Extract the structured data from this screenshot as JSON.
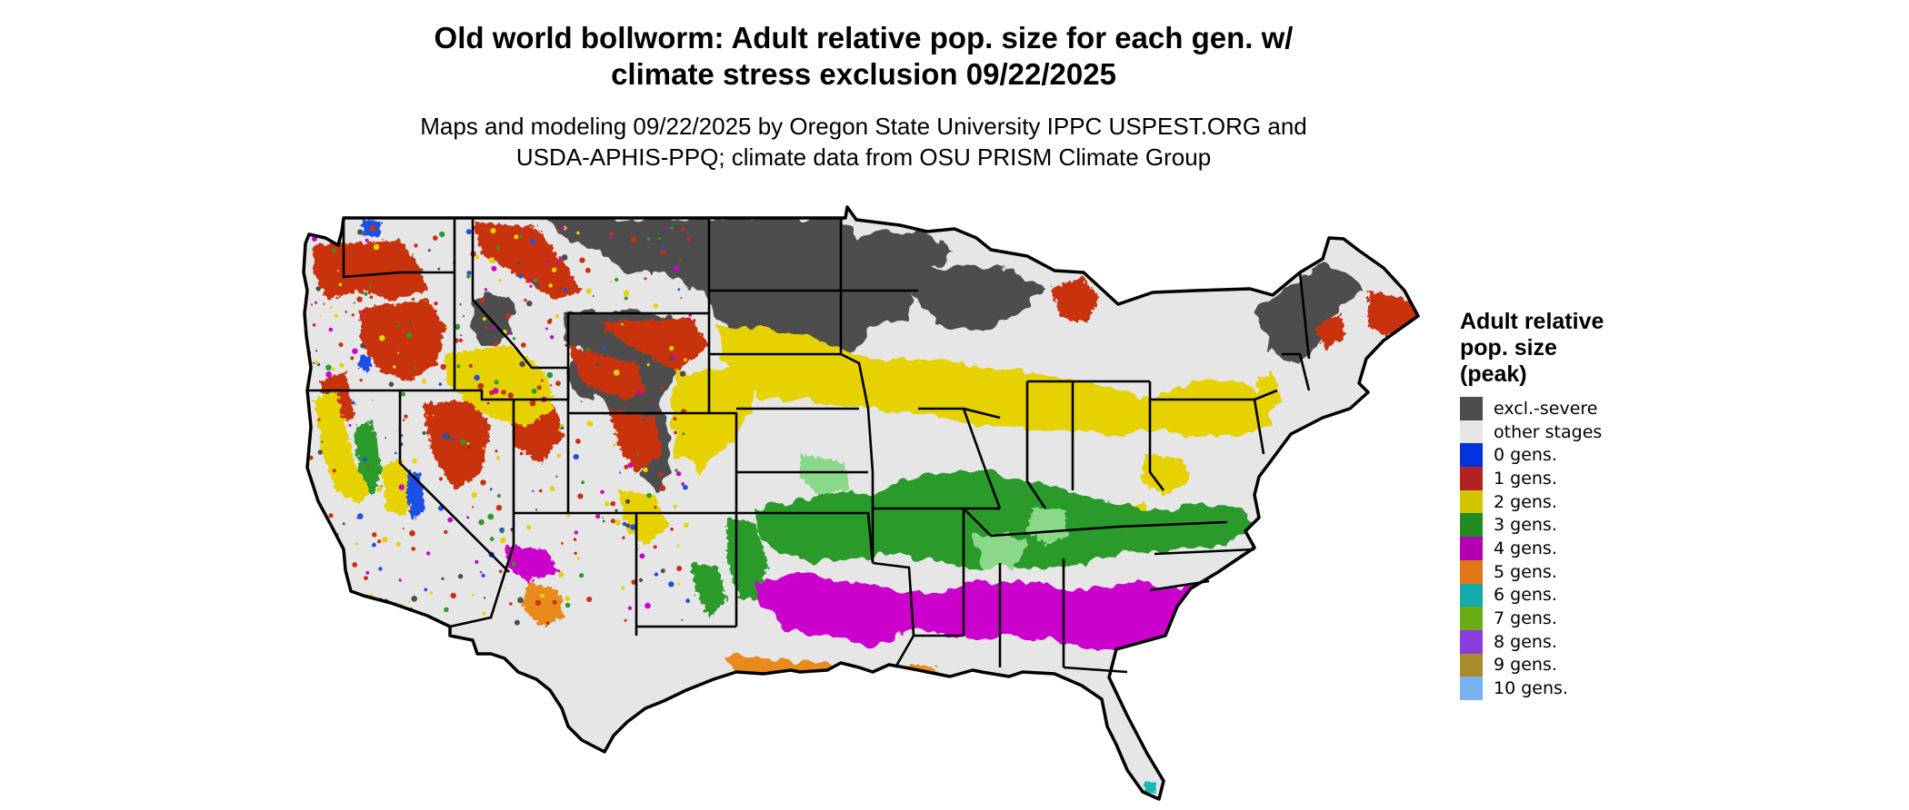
{
  "title": {
    "line1": "Old world bollworm: Adult relative pop. size for each gen. w/",
    "line2": "climate stress exclusion 09/22/2025"
  },
  "subtitle": {
    "line1": "Maps and modeling 09/22/2025 by Oregon State University IPPC USPEST.ORG and",
    "line2": "USDA-APHIS-PPQ; climate data from OSU PRISM Climate Group"
  },
  "legend": {
    "title_line1": "Adult relative",
    "title_line2": "pop. size",
    "title_line3": "(peak)",
    "items": [
      {
        "label": "excl.-severe",
        "color": "#4d4d4d"
      },
      {
        "label": "other stages",
        "color": "#e6e6e6"
      },
      {
        "label": "0 gens.",
        "color": "#0033dd"
      },
      {
        "label": "1 gens.",
        "color": "#b22222"
      },
      {
        "label": "2 gens.",
        "color": "#d4c400"
      },
      {
        "label": "3 gens.",
        "color": "#228b22"
      },
      {
        "label": "4 gens.",
        "color": "#b300b3"
      },
      {
        "label": "5 gens.",
        "color": "#e07818"
      },
      {
        "label": "6 gens.",
        "color": "#13aaaa"
      },
      {
        "label": "7 gens.",
        "color": "#6bab14"
      },
      {
        "label": "8 gens.",
        "color": "#8a3ddc"
      },
      {
        "label": "9 gens.",
        "color": "#a88c28"
      },
      {
        "label": "10 gens.",
        "color": "#78b4f0"
      }
    ]
  },
  "map": {
    "region": "Contiguous United States",
    "colors": {
      "excluded": "#4d4d4d",
      "other": "#e6e6e6",
      "g1": "#c8300f",
      "g2": "#e6d200",
      "g3": "#2a9a2a",
      "g3light": "#8ad88a",
      "g4": "#cc00cc",
      "g5": "#e88a1e",
      "g6": "#19b8b8",
      "g0": "#1e50e6",
      "border": "#000000"
    }
  }
}
